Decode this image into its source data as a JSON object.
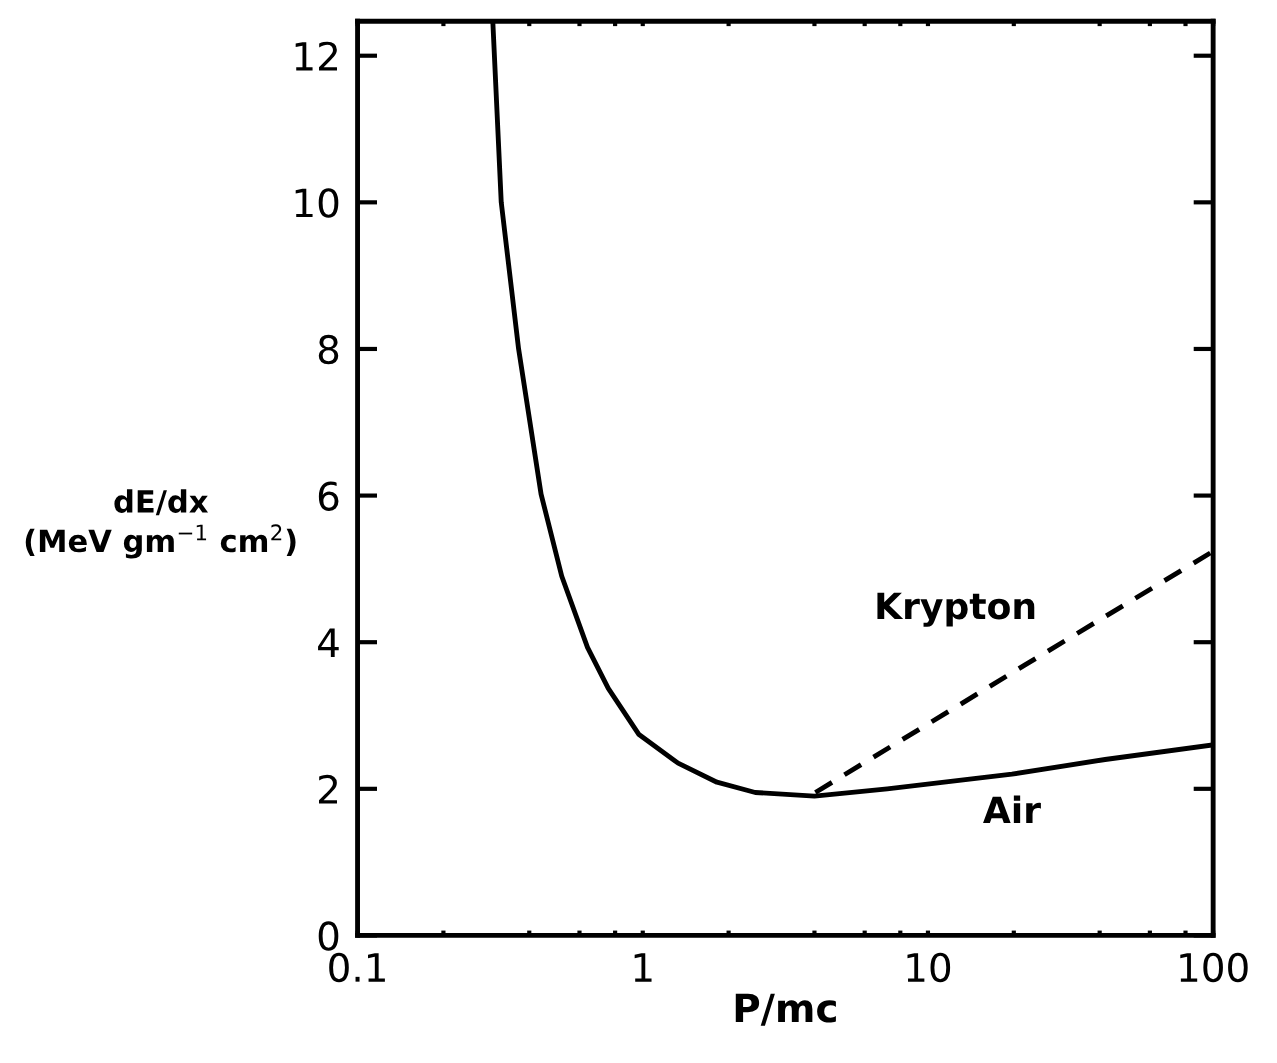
{
  "chart_data": {
    "type": "line",
    "xlabel": "P/mc",
    "ylabel": "dE/dx\n(MeV gm$^{−1}$ cm$^{2}$)",
    "log": "x",
    "xlim": [
      0.1,
      100
    ],
    "ylim": [
      0,
      12.47
    ],
    "xticks": [
      {
        "value": 0.1,
        "label": "0.1"
      },
      {
        "value": 0.2,
        "label": null
      },
      {
        "value": 0.4,
        "label": null
      },
      {
        "value": 0.6,
        "label": null
      },
      {
        "value": 0.8,
        "label": null
      },
      1,
      {
        "value": 2,
        "label": null
      },
      {
        "value": 4,
        "label": null
      },
      {
        "value": 6,
        "label": null
      },
      {
        "value": 8,
        "label": null
      },
      10,
      {
        "value": 20,
        "label": null
      },
      {
        "value": 40,
        "label": null
      },
      {
        "value": 60,
        "label": null
      },
      {
        "value": 80,
        "label": null
      },
      100
    ],
    "yticks": [
      0,
      2,
      4,
      6,
      8,
      10,
      12
    ],
    "grid": false,
    "legend": false,
    "series": [
      {
        "name": "Air",
        "color": "#000000",
        "line_style": "solid",
        "x": [
          0.298,
          0.319,
          0.367,
          0.44,
          0.52,
          0.64,
          0.757,
          0.97,
          1.33,
          1.82,
          2.48,
          4.0,
          7.2,
          19.7,
          41.8,
          100
        ],
        "values": [
          12.47,
          10,
          8,
          6.02,
          4.9,
          3.93,
          3.37,
          2.74,
          2.35,
          2.09,
          1.95,
          1.9,
          2.0,
          2.2,
          2.4,
          2.6
        ]
      },
      {
        "name": "Krypton",
        "color": "#000000",
        "line_style": "dashed",
        "x": [
          4.03,
          21.9,
          100
        ],
        "values": [
          1.95,
          3.69,
          5.24
        ]
      }
    ]
  }
}
